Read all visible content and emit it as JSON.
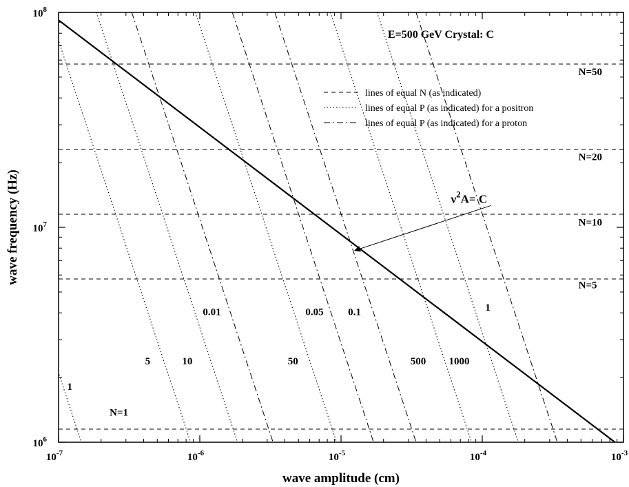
{
  "chart_data": {
    "type": "line",
    "x_scale": "log",
    "y_scale": "log",
    "xlim": [
      1e-07,
      0.001
    ],
    "ylim": [
      1000000.0,
      100000000.0
    ],
    "xlabel": "wave amplitude (cm)",
    "ylabel": "wave frequency  (Hz)",
    "title": "E=500 GeV   Crystal: C",
    "grid": false,
    "legend_position": "top-right",
    "x_ticks": [
      {
        "value": 1e-07,
        "mant": "10",
        "exp": "-7"
      },
      {
        "value": 1e-06,
        "mant": "10",
        "exp": "-6"
      },
      {
        "value": 1e-05,
        "mant": "10",
        "exp": "-5"
      },
      {
        "value": 0.0001,
        "mant": "10",
        "exp": "-4"
      },
      {
        "value": 0.001,
        "mant": "10",
        "exp": "-3"
      }
    ],
    "y_ticks": [
      {
        "value": 1000000.0,
        "mant": "10",
        "exp": "6"
      },
      {
        "value": 10000000.0,
        "mant": "10",
        "exp": "7"
      },
      {
        "value": 100000000.0,
        "mant": "10",
        "exp": "8"
      }
    ],
    "legend": [
      {
        "style": "dashed",
        "label": "lines of equal N (as indicated)"
      },
      {
        "style": "dotted",
        "label": "lines of equal P (as indicated) for a positron"
      },
      {
        "style": "dashdot",
        "label": "lines of equal P (as indicated) for a proton"
      }
    ],
    "critical_line": {
      "label_base": "ν",
      "label_sup": "2",
      "label_rest": "A= C",
      "points": [
        [
          1e-07,
          92000000.0
        ],
        [
          0.00087,
          1000000.0
        ]
      ],
      "arrow_to": [
        1.25e-05,
        7800000.0
      ],
      "label_at": [
        6e-05,
        13000000.0
      ]
    },
    "N_lines": [
      {
        "label": "N=1",
        "y": 1150000.0,
        "label_x": 2.3e-07,
        "label_y": 1330000.0
      },
      {
        "label": "N=5",
        "y": 5750000.0,
        "label_x": 0.00048,
        "label_y": 5200000.0
      },
      {
        "label": "N=10",
        "y": 11500000.0,
        "label_x": 0.00048,
        "label_y": 10200000.0
      },
      {
        "label": "N=20",
        "y": 23000000.0,
        "label_x": 0.00048,
        "label_y": 20500000.0
      },
      {
        "label": "N=50",
        "y": 57500000.0,
        "label_x": 0.00048,
        "label_y": 51000000.0
      }
    ],
    "positron_P_lines": [
      {
        "label": "1",
        "x_at_bottom": 1.45e-07,
        "label_x": 1.15e-07,
        "label_y": 1750000.0
      },
      {
        "label": "5",
        "x_at_bottom": 8.6e-07,
        "label_x": 4.1e-07,
        "label_y": 2300000.0
      },
      {
        "label": "10",
        "x_at_bottom": 1.85e-06,
        "label_x": 7.5e-07,
        "label_y": 2300000.0
      },
      {
        "label": "50",
        "x_at_bottom": 9.3e-06,
        "label_x": 4.2e-06,
        "label_y": 2300000.0
      },
      {
        "label": "500",
        "x_at_bottom": 8.4e-05,
        "label_x": 3.1e-05,
        "label_y": 2300000.0
      },
      {
        "label": "1000",
        "x_at_bottom": 0.00018,
        "label_x": 5.8e-05,
        "label_y": 2300000.0
      }
    ],
    "proton_P_lines": [
      {
        "label": "0.01",
        "x_at_bottom": 3.3e-06,
        "label_x": 1.05e-06,
        "label_y": 3900000.0
      },
      {
        "label": "0.05",
        "x_at_bottom": 1.7e-05,
        "label_x": 5.6e-06,
        "label_y": 3900000.0
      },
      {
        "label": "0.1",
        "x_at_bottom": 3.4e-05,
        "label_x": 1.12e-05,
        "label_y": 3900000.0
      },
      {
        "label": "1",
        "x_at_bottom": 0.00034,
        "label_x": 0.000105,
        "label_y": 4100000.0
      }
    ]
  }
}
